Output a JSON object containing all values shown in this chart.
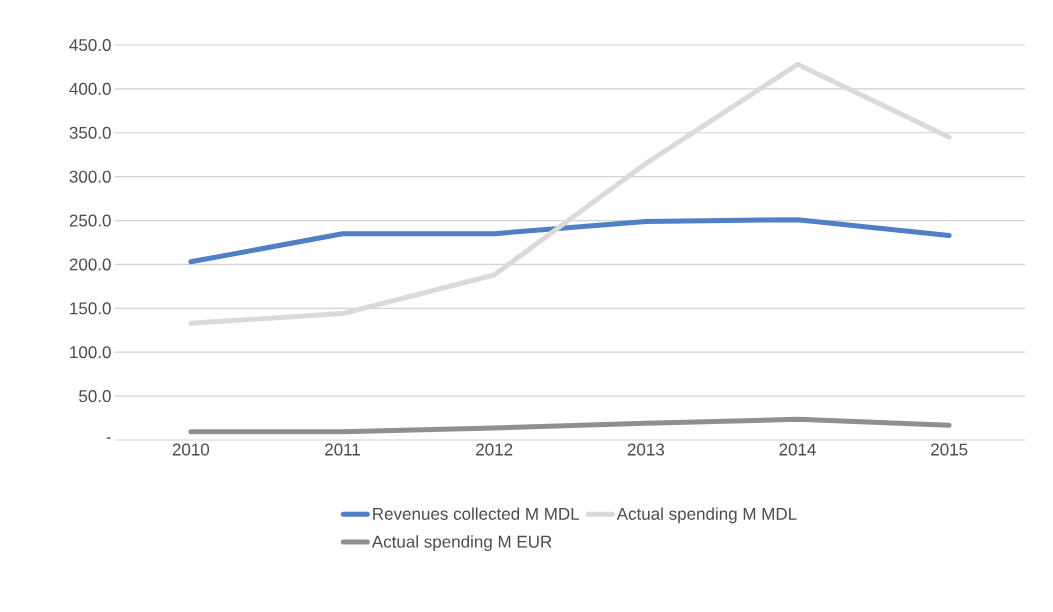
{
  "chart_data": {
    "type": "line",
    "categories": [
      "2010",
      "2011",
      "2012",
      "2013",
      "2014",
      "2015"
    ],
    "series": [
      {
        "name": "Revenues collected M MDL",
        "color": "#4f7fc5",
        "values": [
          203,
          235,
          235,
          249,
          251,
          233
        ]
      },
      {
        "name": "Actual spending M MDL",
        "color": "#dadada",
        "values": [
          133,
          144,
          188,
          315,
          428,
          345
        ]
      },
      {
        "name": "Actual spending M EUR",
        "color": "#8f8f8f",
        "values": [
          9.4,
          9.4,
          13.7,
          19.2,
          23.6,
          16.8
        ]
      }
    ],
    "ylim": [
      0,
      450
    ],
    "yticks": [
      {
        "value": 0,
        "label": "-"
      },
      {
        "value": 50,
        "label": "50.0"
      },
      {
        "value": 100,
        "label": "100.0"
      },
      {
        "value": 150,
        "label": "150.0"
      },
      {
        "value": 200,
        "label": "200.0"
      },
      {
        "value": 250,
        "label": "250.0"
      },
      {
        "value": 300,
        "label": "300.0"
      },
      {
        "value": 350,
        "label": "350.0"
      },
      {
        "value": 400,
        "label": "400.0"
      },
      {
        "value": 450,
        "label": "450.0"
      }
    ],
    "grid": "y",
    "legend": "bottom",
    "marker": "none",
    "line_style": "solid"
  }
}
